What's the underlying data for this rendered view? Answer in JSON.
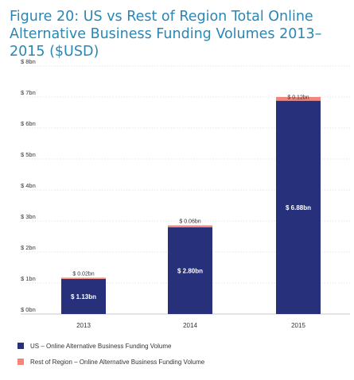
{
  "title": "Figure 20: US vs Rest of Region Total Online Alternative Business Funding Volumes 2013–2015 ($USD)",
  "colors": {
    "us": "#27307a",
    "rest": "#f48679",
    "title": "#2a86b4",
    "grid": "#c9c9c9"
  },
  "chart_data": {
    "type": "bar",
    "stacked": true,
    "categories": [
      "2013",
      "2014",
      "2015"
    ],
    "series": [
      {
        "name": "US – Online Alternative Business Funding Volume",
        "values": [
          1.13,
          2.8,
          6.88
        ],
        "labels": [
          "$ 1.13bn",
          "$ 2.80bn",
          "$ 6.88bn"
        ]
      },
      {
        "name": "Rest of Region – Online Alternative Business Funding Volume",
        "values": [
          0.02,
          0.06,
          0.12
        ],
        "labels": [
          "$ 0.02bn",
          "$ 0.06bn",
          "$ 0.12bn"
        ]
      }
    ],
    "ylim": [
      0,
      8
    ],
    "yticks": [
      0,
      1,
      2,
      3,
      4,
      5,
      6,
      7,
      8
    ],
    "ytick_labels": [
      "$ 0bn",
      "$ 1bn",
      "$ 2bn",
      "$ 3bn",
      "$ 4bn",
      "$ 5bn",
      "$ 6bn",
      "$ 7bn",
      "$ 8bn"
    ],
    "grid": true,
    "legend_position": "bottom-left"
  }
}
